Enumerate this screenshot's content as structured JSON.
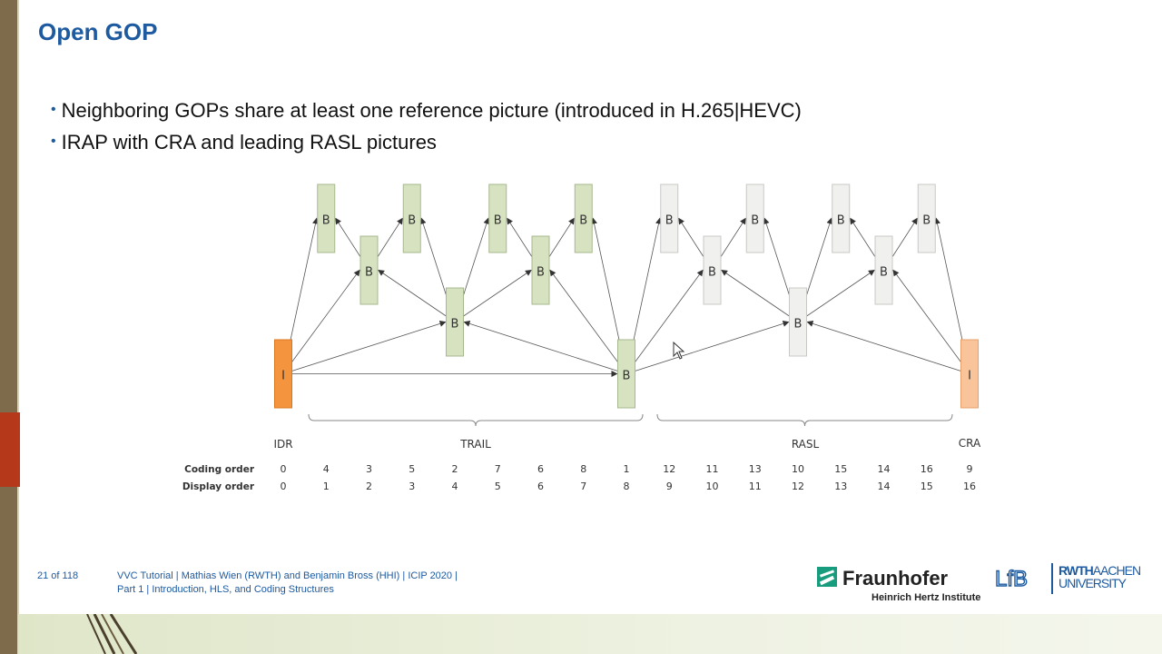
{
  "title": "Open GOP",
  "bullets": [
    "Neighboring GOPs share at least one reference picture (introduced in H.265|HEVC)",
    "IRAP with CRA and leading RASL pictures"
  ],
  "diagram": {
    "pictures": [
      {
        "label": "I",
        "kind": "idr"
      },
      {
        "label": "B",
        "kind": "trail"
      },
      {
        "label": "B",
        "kind": "trail"
      },
      {
        "label": "B",
        "kind": "trail"
      },
      {
        "label": "B",
        "kind": "trail"
      },
      {
        "label": "B",
        "kind": "trail"
      },
      {
        "label": "B",
        "kind": "trail"
      },
      {
        "label": "B",
        "kind": "trail"
      },
      {
        "label": "B",
        "kind": "trail"
      },
      {
        "label": "B",
        "kind": "rasl"
      },
      {
        "label": "B",
        "kind": "rasl"
      },
      {
        "label": "B",
        "kind": "rasl"
      },
      {
        "label": "B",
        "kind": "rasl"
      },
      {
        "label": "B",
        "kind": "rasl"
      },
      {
        "label": "B",
        "kind": "rasl"
      },
      {
        "label": "B",
        "kind": "rasl"
      },
      {
        "label": "I",
        "kind": "cra"
      }
    ],
    "groups": {
      "idr": "IDR",
      "trail": "TRAIL",
      "rasl": "RASL",
      "cra": "CRA"
    },
    "coding_order_label": "Coding order",
    "display_order_label": "Display order",
    "coding_order": [
      "0",
      "4",
      "3",
      "5",
      "2",
      "7",
      "6",
      "8",
      "1",
      "12",
      "11",
      "13",
      "10",
      "15",
      "14",
      "16",
      "9"
    ],
    "display_order": [
      "0",
      "1",
      "2",
      "3",
      "4",
      "5",
      "6",
      "7",
      "8",
      "9",
      "10",
      "11",
      "12",
      "13",
      "14",
      "15",
      "16"
    ]
  },
  "footer": {
    "page": "21 of 118",
    "line1": "VVC Tutorial  |  Mathias Wien (RWTH) and Benjamin Bross (HHI)  |  ICIP 2020  |",
    "line2": "Part 1  |  Introduction, HLS, and Coding Structures"
  },
  "logos": {
    "fraunhofer_name": "Fraunhofer",
    "fraunhofer_sub": "Heinrich Hertz Institute",
    "lfb": "LfB",
    "rwth_line1_bold": "RWTH",
    "rwth_line1_rest": "AACHEN",
    "rwth_line2": "UNIVERSITY"
  },
  "colors": {
    "title": "#1d5aa0",
    "idr_fill": "#f5943f",
    "cra_fill": "#f9c49a",
    "trail_fill": "#d6e2c0",
    "rasl_fill": "#f0f0ee"
  }
}
